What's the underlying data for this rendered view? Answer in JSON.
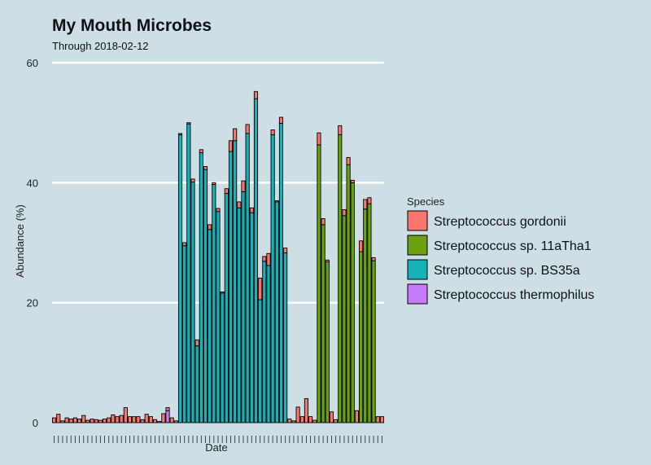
{
  "chart_data": {
    "type": "bar",
    "stacked": true,
    "title": "My Mouth Microbes",
    "subtitle": "Through 2018-02-12",
    "xlabel": "Date",
    "ylabel": "Abundance (%)",
    "ylim": [
      0,
      60
    ],
    "yticks": [
      "0",
      "20",
      "40",
      "60"
    ],
    "grid": "horizontal",
    "legend_position": "right",
    "legend_title": "Species",
    "series": [
      {
        "name": "Streptococcus gordonii",
        "color": "#f8766d",
        "values": [
          0.8,
          1.4,
          0.3,
          0.8,
          0.6,
          0.8,
          0.6,
          1.2,
          0.4,
          0.6,
          0.5,
          0.4,
          0.6,
          0.8,
          1.3,
          1.0,
          1.2,
          2.5,
          1.0,
          1.0,
          1.0,
          0.5,
          1.4,
          1.0,
          0.5,
          0.2,
          1.5,
          0.5,
          0.8,
          0.3,
          0.2,
          0.5,
          0.2,
          0.5,
          1.0,
          0.5,
          0.5,
          0.8,
          0.3,
          0.5,
          0.2,
          0.8,
          1.8,
          2.0,
          1.0,
          1.8,
          1.5,
          0.8,
          1.2,
          3.6,
          0.8,
          2.0,
          0.8,
          0.2,
          1.0,
          0.8,
          0.6,
          0.3,
          2.6,
          1.0,
          4.0,
          1.0,
          0.4,
          2.0,
          1.0,
          0.3,
          1.8,
          0.5,
          1.5,
          1.0,
          1.2,
          0.4,
          2.0,
          1.8,
          1.6,
          1.0,
          0.5,
          1.0,
          1.0
        ]
      },
      {
        "name": "Streptococcus sp. 11aTha1",
        "color": "#6aa211",
        "values": [
          0,
          0,
          0,
          0,
          0,
          0,
          0,
          0,
          0,
          0,
          0,
          0,
          0,
          0,
          0,
          0,
          0,
          0,
          0,
          0,
          0,
          0,
          0,
          0,
          0,
          0,
          0,
          0,
          0,
          0,
          0,
          0,
          0,
          0,
          0,
          0,
          0,
          0,
          0,
          0,
          0,
          0,
          0,
          0,
          0,
          0,
          0,
          0,
          0,
          0,
          0,
          0,
          0,
          0,
          0,
          0,
          0,
          0,
          0,
          0,
          0,
          0,
          0,
          46.3,
          33.0,
          26.8,
          0,
          0,
          48.0,
          34.5,
          43.0,
          40.0,
          0,
          28.5,
          35.6,
          36.5,
          27.0,
          0,
          0
        ]
      },
      {
        "name": "Streptococcus sp. BS35a",
        "color": "#17b2b7",
        "values": [
          0,
          0,
          0,
          0,
          0,
          0,
          0,
          0,
          0,
          0,
          0,
          0,
          0,
          0,
          0,
          0,
          0,
          0,
          0,
          0,
          0,
          0,
          0,
          0,
          0,
          0,
          0,
          0,
          0,
          0,
          48.0,
          29.5,
          49.8,
          40.1,
          12.8,
          45.0,
          42.2,
          32.2,
          39.7,
          35.2,
          21.6,
          38.2,
          45.2,
          47.0,
          35.8,
          38.5,
          48.2,
          35.0,
          54.0,
          20.5,
          26.9,
          26.2,
          48.0,
          36.8,
          49.9,
          28.3,
          0,
          0,
          0,
          0,
          0,
          0,
          0,
          0,
          0,
          0,
          0,
          0,
          0,
          0,
          0,
          0,
          0,
          0,
          0,
          0,
          0,
          0,
          0
        ]
      },
      {
        "name": "Streptococcus thermophilus",
        "color": "#c77cff",
        "values": [
          0,
          0,
          0,
          0,
          0,
          0,
          0,
          0,
          0,
          0,
          0,
          0,
          0,
          0,
          0,
          0,
          0,
          0,
          0,
          0,
          0,
          0,
          0,
          0,
          0,
          0,
          0,
          2.0,
          0,
          0,
          0,
          0,
          0,
          0,
          0,
          0,
          0,
          0,
          0,
          0,
          0,
          0,
          0,
          0,
          0,
          0,
          0,
          0,
          0,
          0,
          0,
          0,
          0,
          0,
          0,
          0,
          0,
          0,
          0,
          0,
          0,
          0,
          0,
          0,
          0,
          0,
          0,
          0,
          0,
          0,
          0,
          0,
          0,
          0,
          0,
          0,
          0,
          0,
          0
        ]
      }
    ]
  }
}
